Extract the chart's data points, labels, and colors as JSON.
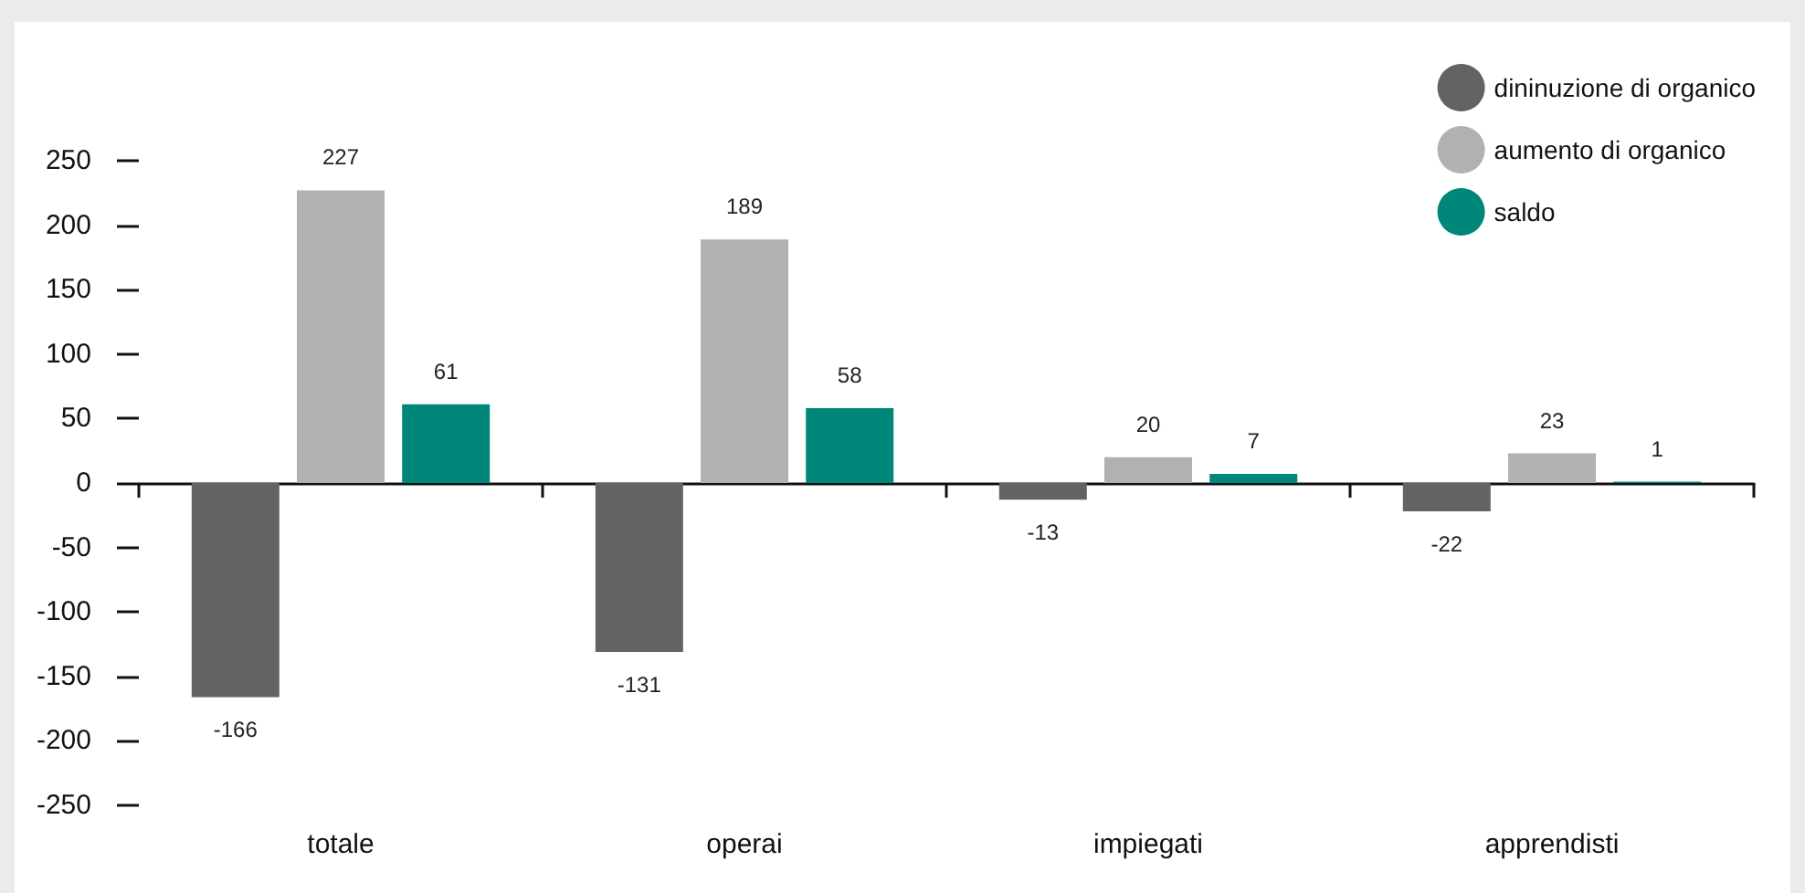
{
  "chart_data": {
    "type": "bar",
    "categories": [
      "totale",
      "operai",
      "impiegati",
      "apprendisti"
    ],
    "series": [
      {
        "name": "dininuzione di organico",
        "color": "#636363",
        "values": [
          -166,
          -131,
          -13,
          -22
        ]
      },
      {
        "name": "aumento di organico",
        "color": "#b1b1b1",
        "values": [
          227,
          189,
          20,
          23
        ]
      },
      {
        "name": "saldo",
        "color": "#00877a",
        "values": [
          61,
          58,
          7,
          1
        ]
      }
    ],
    "ylim": [
      -250,
      250
    ],
    "yticks": [
      -250,
      -200,
      -150,
      -100,
      -50,
      0,
      50,
      100,
      150,
      200,
      250
    ],
    "data_labels": true,
    "legend": "top right"
  }
}
